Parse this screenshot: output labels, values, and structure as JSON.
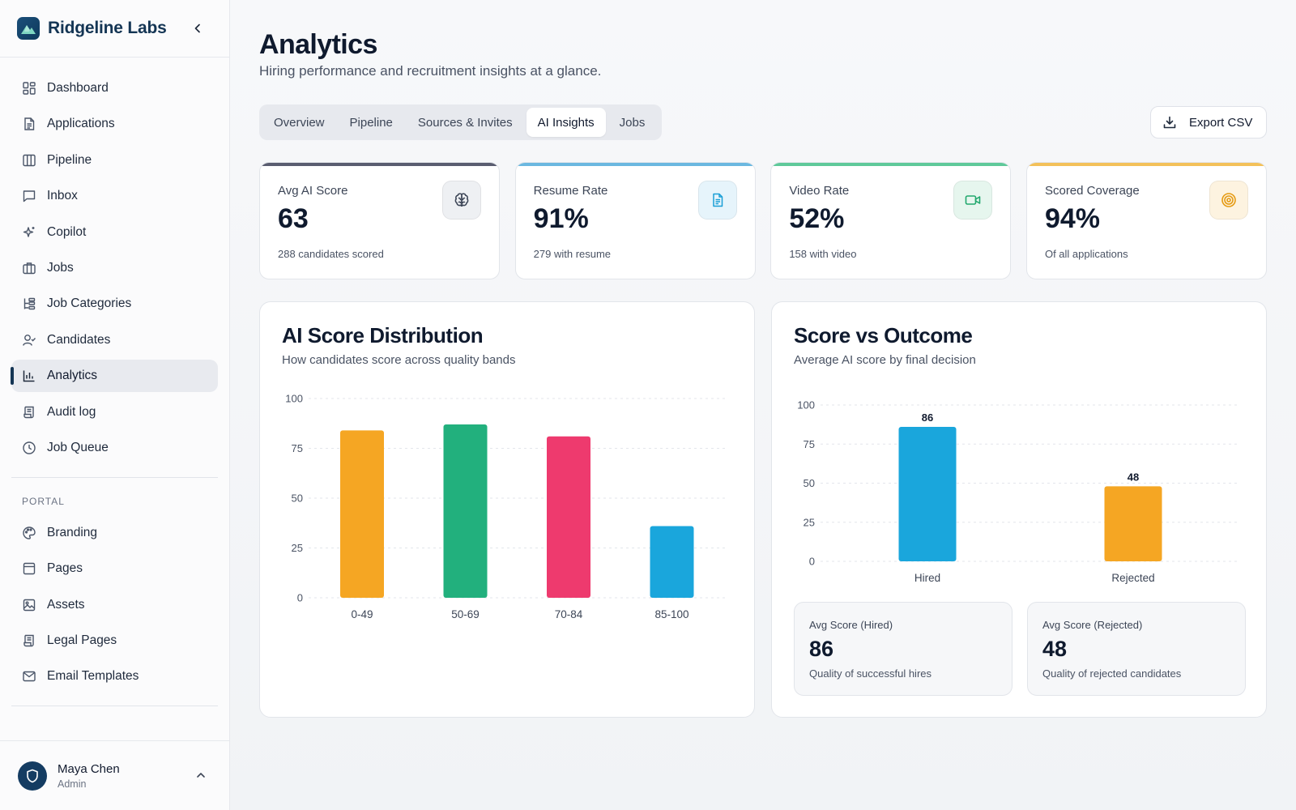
{
  "sidebar": {
    "brand": "Ridgeline Labs",
    "items": [
      {
        "label": "Dashboard",
        "icon": "grid-icon"
      },
      {
        "label": "Applications",
        "icon": "file-icon"
      },
      {
        "label": "Pipeline",
        "icon": "columns-icon"
      },
      {
        "label": "Inbox",
        "icon": "message-icon"
      },
      {
        "label": "Copilot",
        "icon": "sparkle-icon"
      },
      {
        "label": "Jobs",
        "icon": "briefcase-icon"
      },
      {
        "label": "Job Categories",
        "icon": "hierarchy-icon"
      },
      {
        "label": "Candidates",
        "icon": "user-check-icon"
      },
      {
        "label": "Analytics",
        "icon": "bar-chart-icon",
        "active": true
      },
      {
        "label": "Audit log",
        "icon": "scroll-icon"
      },
      {
        "label": "Job Queue",
        "icon": "clock-icon"
      }
    ],
    "portal_label": "PORTAL",
    "portal_items": [
      {
        "label": "Branding",
        "icon": "palette-icon"
      },
      {
        "label": "Pages",
        "icon": "layout-icon"
      },
      {
        "label": "Assets",
        "icon": "image-icon"
      },
      {
        "label": "Legal Pages",
        "icon": "scroll-icon"
      },
      {
        "label": "Email Templates",
        "icon": "mail-icon"
      }
    ],
    "user": {
      "name": "Maya Chen",
      "role": "Admin"
    }
  },
  "header": {
    "title": "Analytics",
    "subtitle": "Hiring performance and recruitment insights at a glance.",
    "tabs": [
      "Overview",
      "Pipeline",
      "Sources & Invites",
      "AI Insights",
      "Jobs"
    ],
    "active_tab": "AI Insights",
    "export_label": "Export CSV"
  },
  "kpis": [
    {
      "label": "Avg AI Score",
      "value": "63",
      "sub": "288 candidates scored",
      "icon": "brain-icon",
      "accent": "#5a5d70",
      "icon_bg": "#eef0f3",
      "icon_color": "#3c4556"
    },
    {
      "label": "Resume Rate",
      "value": "91%",
      "sub": "279 with resume",
      "icon": "document-icon",
      "accent": "#6bb8e0",
      "icon_bg": "#e6f4fb",
      "icon_color": "#1a9fd6"
    },
    {
      "label": "Video Rate",
      "value": "52%",
      "sub": "158 with video",
      "icon": "video-icon",
      "accent": "#5fc99a",
      "icon_bg": "#e6f6ee",
      "icon_color": "#21a86d"
    },
    {
      "label": "Scored Coverage",
      "value": "94%",
      "sub": "Of all applications",
      "icon": "target-icon",
      "accent": "#f3c15a",
      "icon_bg": "#fdf3e0",
      "icon_color": "#e59a12"
    }
  ],
  "distribution": {
    "title": "AI Score Distribution",
    "subtitle": "How candidates score across quality bands"
  },
  "outcome": {
    "title": "Score vs Outcome",
    "subtitle": "Average AI score by final decision",
    "hired": {
      "label": "Avg Score (Hired)",
      "value": "86",
      "sub": "Quality of successful hires"
    },
    "rejected": {
      "label": "Avg Score (Rejected)",
      "value": "48",
      "sub": "Quality of rejected candidates"
    }
  },
  "chart_data": [
    {
      "type": "bar",
      "categories": [
        "0-49",
        "50-69",
        "70-84",
        "85-100"
      ],
      "values": [
        84,
        87,
        81,
        36
      ],
      "colors": [
        "#f5a623",
        "#22b07d",
        "#ee3a6e",
        "#1aa6dc"
      ],
      "title": "AI Score Distribution",
      "subtitle": "How candidates score across quality bands",
      "yticks": [
        0,
        25,
        50,
        75,
        100
      ],
      "ylim": [
        0,
        100
      ],
      "grid": true
    },
    {
      "type": "bar",
      "categories": [
        "Hired",
        "Rejected"
      ],
      "values": [
        86,
        48
      ],
      "data_labels": [
        "86",
        "48"
      ],
      "colors": [
        "#1aa6dc",
        "#f5a623"
      ],
      "title": "Score vs Outcome",
      "subtitle": "Average AI score by final decision",
      "yticks": [
        0,
        25,
        50,
        75,
        100
      ],
      "ylim": [
        0,
        100
      ],
      "grid": true
    }
  ]
}
